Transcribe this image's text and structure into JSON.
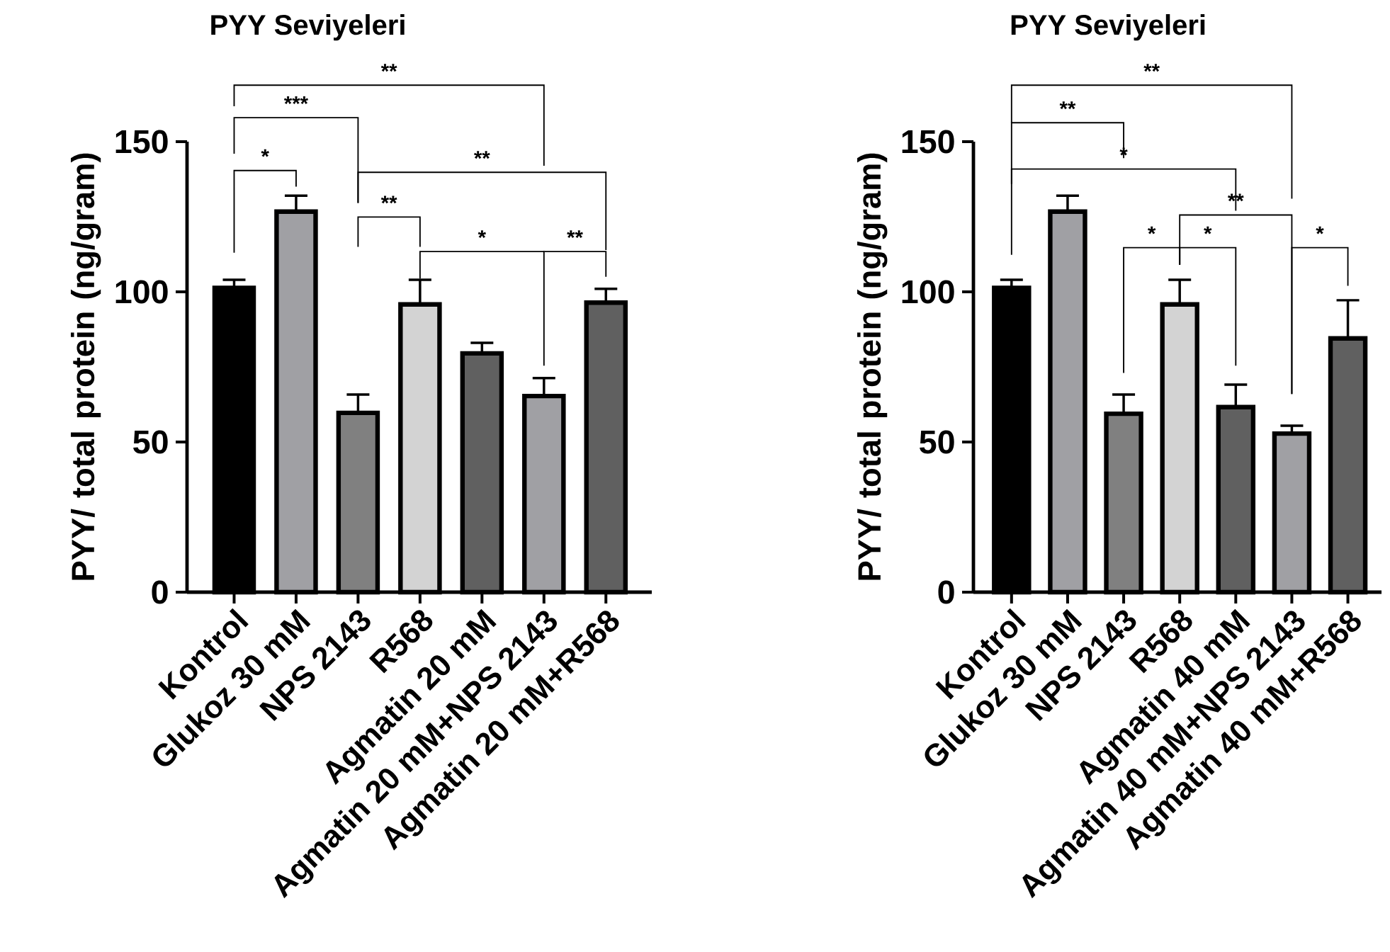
{
  "chart_data": [
    {
      "type": "bar",
      "title": "PYY Seviyeleri",
      "ylabel": "PYY/ total protein (ng/gram)",
      "categories": [
        "Kontrol",
        "Glukoz 30 mM",
        "NPS 2143",
        "R568",
        "Agmatin 20 mM",
        "Agmatin 20 mM+NPS 2143",
        "Agmatin 20 mM+R568"
      ],
      "values": [
        101.3,
        126.7,
        59.7,
        95.8,
        79.5,
        65.3,
        96.4
      ],
      "colors": [
        "#000000",
        "#a0a0a4",
        "#808080",
        "#d3d3d3",
        "#606060",
        "#a0a0a4",
        "#606060"
      ],
      "errors": [
        [
          101.3,
          104
        ],
        [
          126.7,
          132
        ],
        [
          59.7,
          65.8
        ],
        [
          95.8,
          104
        ],
        [
          79.5,
          83
        ],
        [
          65.3,
          71.3
        ],
        [
          96.4,
          101
        ]
      ],
      "ylim": [
        0,
        150
      ],
      "yticks": [
        0,
        50,
        100,
        150
      ],
      "annotations": [
        "*",
        "***",
        "**",
        "**",
        "**",
        "*",
        "**"
      ]
    },
    {
      "type": "bar",
      "title": "PYY Seviyeleri",
      "ylabel": "PYY/ total protein (ng/gram)",
      "categories": [
        "Kontrol",
        "Glukoz 30 mM",
        "NPS 2143",
        "R568",
        "Agmatin 40 mM",
        "Agmatin 40 mM+NPS 2143",
        "Agmatin 40 mM+R568"
      ],
      "values": [
        101.3,
        126.7,
        59.4,
        95.8,
        61.6,
        52.8,
        84.5
      ],
      "colors": [
        "#000000",
        "#a0a0a4",
        "#808080",
        "#d3d3d3",
        "#606060",
        "#a0a0a4",
        "#606060"
      ],
      "errors": [
        [
          101.3,
          104
        ],
        [
          126.7,
          132
        ],
        [
          59.4,
          65.8
        ],
        [
          95.8,
          104
        ],
        [
          61.6,
          69.1
        ],
        [
          52.8,
          55.4
        ],
        [
          84.5,
          97.2
        ]
      ],
      "ylim": [
        0,
        150
      ],
      "yticks": [
        0,
        50,
        100,
        150
      ],
      "annotations": [
        "**",
        "**",
        "*",
        "**",
        "*",
        "*",
        "*"
      ]
    }
  ]
}
